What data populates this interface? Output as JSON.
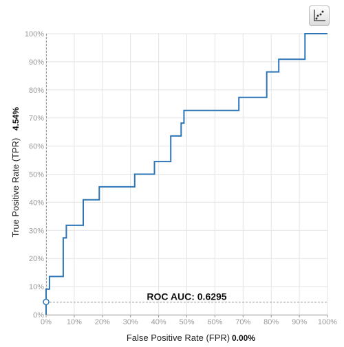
{
  "toolbar": {
    "icon": "scatter-plot-icon"
  },
  "chart_data": {
    "type": "line",
    "title": "",
    "xlabel": "False Positive Rate (FPR)",
    "ylabel": "True Positive Rate (TPR)",
    "xlim": [
      0,
      1
    ],
    "ylim": [
      0,
      1
    ],
    "x_ticks": [
      "0%",
      "10%",
      "20%",
      "30%",
      "40%",
      "50%",
      "60%",
      "70%",
      "80%",
      "90%",
      "100%"
    ],
    "y_ticks": [
      "0%",
      "10%",
      "20%",
      "30%",
      "40%",
      "50%",
      "60%",
      "70%",
      "80%",
      "90%",
      "100%"
    ],
    "grid": true,
    "annotation": "ROC AUC: 0.6295",
    "selected_point": {
      "fpr": 0.0,
      "tpr": 0.0454
    },
    "fpr_readout": "0.00%",
    "tpr_readout": "4.54%",
    "line_color": "#2e75b6",
    "series": [
      {
        "points": [
          [
            0.0,
            0.0
          ],
          [
            0.0,
            0.091
          ],
          [
            0.012,
            0.091
          ],
          [
            0.012,
            0.136
          ],
          [
            0.061,
            0.136
          ],
          [
            0.061,
            0.273
          ],
          [
            0.072,
            0.273
          ],
          [
            0.072,
            0.318
          ],
          [
            0.132,
            0.318
          ],
          [
            0.132,
            0.409
          ],
          [
            0.189,
            0.409
          ],
          [
            0.189,
            0.455
          ],
          [
            0.315,
            0.455
          ],
          [
            0.315,
            0.5
          ],
          [
            0.385,
            0.5
          ],
          [
            0.385,
            0.545
          ],
          [
            0.443,
            0.545
          ],
          [
            0.443,
            0.636
          ],
          [
            0.48,
            0.636
          ],
          [
            0.48,
            0.682
          ],
          [
            0.49,
            0.682
          ],
          [
            0.49,
            0.727
          ],
          [
            0.685,
            0.727
          ],
          [
            0.685,
            0.773
          ],
          [
            0.784,
            0.773
          ],
          [
            0.784,
            0.864
          ],
          [
            0.827,
            0.864
          ],
          [
            0.827,
            0.909
          ],
          [
            0.92,
            0.909
          ],
          [
            0.92,
            1.0
          ],
          [
            1.0,
            1.0
          ]
        ]
      }
    ]
  }
}
